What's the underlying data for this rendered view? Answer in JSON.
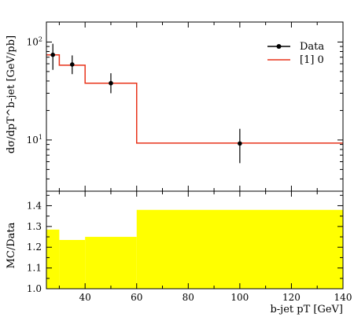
{
  "chart_data": [
    {
      "type": "line",
      "title": "",
      "xlabel": "b-jet pT [GeV]",
      "ylabel": "dσ/dpT^b-jet [GeV/pb]",
      "xlim": [
        25,
        140
      ],
      "ylim": [
        3,
        160
      ],
      "yscale": "log",
      "grid": false,
      "legend_position": "top-right",
      "legend": [
        "Data",
        "[1] 0"
      ],
      "x_ticks": [
        40,
        60,
        80,
        100,
        120,
        140
      ],
      "y_ticks": [
        {
          "base": "10",
          "exp": "1"
        },
        {
          "base": "10",
          "exp": "2"
        }
      ],
      "series": [
        {
          "name": "Data",
          "color": "#000000",
          "points": [
            {
              "x": 27.5,
              "y": 74,
              "yerr_low": 52,
              "yerr_high": 96
            },
            {
              "x": 35,
              "y": 59,
              "yerr_low": 47,
              "yerr_high": 73
            },
            {
              "x": 50,
              "y": 38,
              "yerr_low": 30,
              "yerr_high": 48
            },
            {
              "x": 100,
              "y": 9.2,
              "yerr_low": 5.8,
              "yerr_high": 13
            }
          ]
        },
        {
          "name": "[1] 0",
          "color": "#e8331a",
          "bins": [
            {
              "x0": 25,
              "x1": 30,
              "y": 74
            },
            {
              "x0": 30,
              "x1": 40,
              "y": 58
            },
            {
              "x0": 40,
              "x1": 60,
              "y": 38
            },
            {
              "x0": 60,
              "x1": 140,
              "y": 9.3
            }
          ]
        }
      ]
    },
    {
      "type": "area",
      "title": "",
      "xlabel": "b-jet pT [GeV]",
      "ylabel": "MC/Data",
      "xlim": [
        25,
        140
      ],
      "ylim": [
        1.0,
        1.47
      ],
      "grid": false,
      "x_ticks": [
        40,
        60,
        80,
        100,
        120,
        140
      ],
      "y_ticks": [
        "1.0",
        "1.1",
        "1.2",
        "1.3",
        "1.4"
      ],
      "band_color": "#ffff00",
      "band": [
        {
          "x0": 25,
          "x1": 30,
          "lo": 1.0,
          "hi": 1.285
        },
        {
          "x0": 30,
          "x1": 40,
          "lo": 1.0,
          "hi": 1.235
        },
        {
          "x0": 40,
          "x1": 60,
          "lo": 1.0,
          "hi": 1.25
        },
        {
          "x0": 60,
          "x1": 140,
          "lo": 1.0,
          "hi": 1.38
        }
      ]
    }
  ]
}
